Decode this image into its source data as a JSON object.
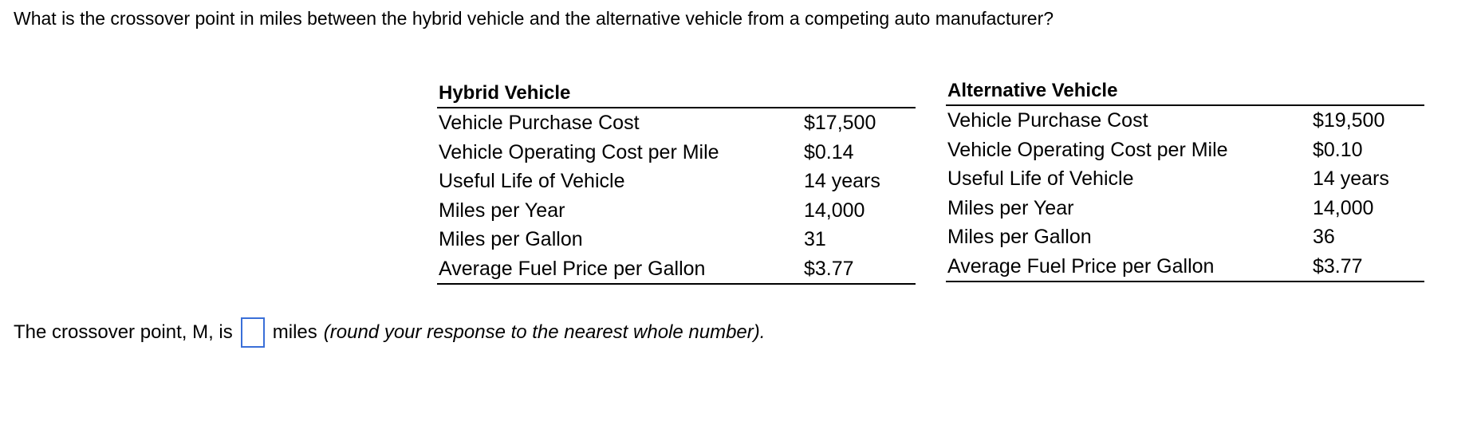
{
  "question": "What is the crossover point in miles between the hybrid vehicle and the alternative vehicle from a competing auto manufacturer?",
  "hybrid": {
    "title": "Hybrid Vehicle",
    "rows": [
      {
        "label": "Vehicle Purchase Cost",
        "value": "$17,500"
      },
      {
        "label": "Vehicle Operating Cost per Mile",
        "value": "$0.14"
      },
      {
        "label": "Useful Life of Vehicle",
        "value": "14 years"
      },
      {
        "label": "Miles per Year",
        "value": "14,000"
      },
      {
        "label": "Miles per Gallon",
        "value": "31"
      },
      {
        "label": "Average Fuel Price per Gallon",
        "value": "$3.77"
      }
    ]
  },
  "alternative": {
    "title": "Alternative Vehicle",
    "rows": [
      {
        "label": "Vehicle Purchase Cost",
        "value": "$19,500"
      },
      {
        "label": "Vehicle Operating Cost per Mile",
        "value": "$0.10"
      },
      {
        "label": "Useful Life of Vehicle",
        "value": "14 years"
      },
      {
        "label": "Miles per Year",
        "value": "14,000"
      },
      {
        "label": "Miles per Gallon",
        "value": "36"
      },
      {
        "label": "Average Fuel Price per Gallon",
        "value": "$3.77"
      }
    ]
  },
  "answer": {
    "prefix": "The crossover point, M, is",
    "value": "",
    "unit": "miles",
    "hint": "(round your response to the nearest whole number)."
  }
}
